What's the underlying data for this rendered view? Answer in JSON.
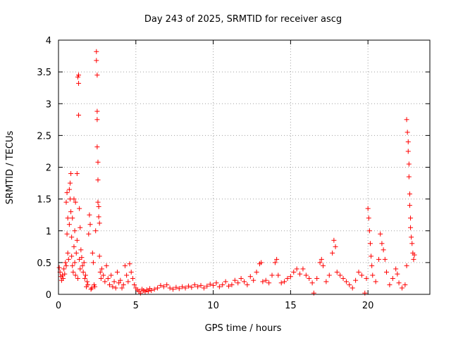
{
  "chart_data": {
    "type": "scatter",
    "title": "Day 243 of 2025, SRMTID for receiver ascg",
    "xlabel": "GPS time / hours",
    "ylabel": "SRMTID / TECUs",
    "xlim": [
      0,
      24
    ],
    "ylim": [
      0,
      4
    ],
    "xticks": [
      0,
      5,
      10,
      15,
      20
    ],
    "yticks": [
      0,
      0.5,
      1,
      1.5,
      2,
      2.5,
      3,
      3.5,
      4
    ],
    "xtick_labels": [
      "0",
      "5",
      "10",
      "15",
      "20"
    ],
    "ytick_labels": [
      "0",
      "0.5",
      "1",
      "1.5",
      "2",
      "2.5",
      "3",
      "3.5",
      "4"
    ],
    "grid": true,
    "marker": "+",
    "color": "#ff0000",
    "series": [
      {
        "name": "SRMTID",
        "points": [
          [
            0.05,
            0.42
          ],
          [
            0.1,
            0.35
          ],
          [
            0.15,
            0.28
          ],
          [
            0.2,
            0.22
          ],
          [
            0.25,
            0.3
          ],
          [
            0.3,
            0.25
          ],
          [
            0.35,
            0.4
          ],
          [
            0.4,
            0.32
          ],
          [
            0.45,
            0.5
          ],
          [
            0.5,
            0.45
          ],
          [
            0.5,
            1.45
          ],
          [
            0.55,
            1.6
          ],
          [
            0.55,
            0.95
          ],
          [
            0.6,
            1.2
          ],
          [
            0.6,
            0.65
          ],
          [
            0.65,
            0.55
          ],
          [
            0.7,
            1.1
          ],
          [
            0.7,
            1.65
          ],
          [
            0.75,
            1.75
          ],
          [
            0.75,
            1.5
          ],
          [
            0.8,
            1.9
          ],
          [
            0.8,
            1.3
          ],
          [
            0.85,
            0.9
          ],
          [
            0.85,
            0.6
          ],
          [
            0.9,
            1.2
          ],
          [
            0.9,
            0.45
          ],
          [
            0.95,
            0.35
          ],
          [
            1.0,
            1.5
          ],
          [
            1.0,
            0.75
          ],
          [
            1.05,
            0.5
          ],
          [
            1.05,
            1.0
          ],
          [
            1.1,
            1.45
          ],
          [
            1.1,
            0.3
          ],
          [
            1.15,
            0.65
          ],
          [
            1.2,
            0.85
          ],
          [
            1.2,
            1.9
          ],
          [
            1.25,
            3.42
          ],
          [
            1.25,
            0.25
          ],
          [
            1.3,
            3.32
          ],
          [
            1.3,
            2.82
          ],
          [
            1.3,
            3.45
          ],
          [
            1.35,
            1.35
          ],
          [
            1.35,
            0.55
          ],
          [
            1.4,
            1.05
          ],
          [
            1.4,
            0.4
          ],
          [
            1.45,
            0.7
          ],
          [
            1.5,
            0.58
          ],
          [
            1.55,
            0.45
          ],
          [
            1.6,
            0.35
          ],
          [
            1.65,
            0.5
          ],
          [
            1.7,
            0.25
          ],
          [
            1.75,
            0.3
          ],
          [
            1.8,
            0.12
          ],
          [
            1.85,
            0.2
          ],
          [
            1.9,
            0.15
          ],
          [
            1.95,
            0.95
          ],
          [
            2.0,
            1.25
          ],
          [
            2.05,
            1.1
          ],
          [
            2.1,
            0.08
          ],
          [
            2.15,
            0.1
          ],
          [
            2.2,
            0.65
          ],
          [
            2.25,
            0.5
          ],
          [
            2.3,
            0.15
          ],
          [
            2.35,
            0.12
          ],
          [
            2.4,
            1.0
          ],
          [
            2.45,
            3.82
          ],
          [
            2.45,
            3.68
          ],
          [
            2.5,
            3.45
          ],
          [
            2.5,
            2.88
          ],
          [
            2.5,
            2.75
          ],
          [
            2.5,
            2.32
          ],
          [
            2.55,
            2.08
          ],
          [
            2.55,
            1.8
          ],
          [
            2.55,
            1.45
          ],
          [
            2.6,
            1.38
          ],
          [
            2.6,
            1.22
          ],
          [
            2.65,
            1.12
          ],
          [
            2.65,
            0.6
          ],
          [
            2.7,
            0.35
          ],
          [
            2.75,
            0.25
          ],
          [
            2.8,
            0.4
          ],
          [
            2.9,
            0.3
          ],
          [
            3.0,
            0.2
          ],
          [
            3.1,
            0.45
          ],
          [
            3.2,
            0.25
          ],
          [
            3.3,
            0.15
          ],
          [
            3.4,
            0.3
          ],
          [
            3.5,
            0.12
          ],
          [
            3.6,
            0.2
          ],
          [
            3.7,
            0.1
          ],
          [
            3.8,
            0.35
          ],
          [
            3.9,
            0.18
          ],
          [
            4.0,
            0.22
          ],
          [
            4.1,
            0.1
          ],
          [
            4.2,
            0.15
          ],
          [
            4.3,
            0.45
          ],
          [
            4.4,
            0.3
          ],
          [
            4.5,
            0.2
          ],
          [
            4.6,
            0.48
          ],
          [
            4.7,
            0.35
          ],
          [
            4.8,
            0.25
          ],
          [
            4.9,
            0.15
          ],
          [
            5.0,
            0.1
          ],
          [
            5.1,
            0.07
          ],
          [
            5.2,
            0.05
          ],
          [
            5.3,
            0.02
          ],
          [
            5.4,
            0.08
          ],
          [
            5.5,
            0.06
          ],
          [
            5.6,
            0.04
          ],
          [
            5.7,
            0.07
          ],
          [
            5.8,
            0.05
          ],
          [
            5.9,
            0.09
          ],
          [
            6.0,
            0.06
          ],
          [
            6.2,
            0.08
          ],
          [
            6.4,
            0.1
          ],
          [
            6.6,
            0.14
          ],
          [
            6.8,
            0.12
          ],
          [
            7.0,
            0.15
          ],
          [
            7.2,
            0.1
          ],
          [
            7.4,
            0.08
          ],
          [
            7.6,
            0.11
          ],
          [
            7.8,
            0.09
          ],
          [
            8.0,
            0.12
          ],
          [
            8.2,
            0.1
          ],
          [
            8.4,
            0.13
          ],
          [
            8.6,
            0.11
          ],
          [
            8.8,
            0.15
          ],
          [
            9.0,
            0.12
          ],
          [
            9.2,
            0.14
          ],
          [
            9.4,
            0.1
          ],
          [
            9.6,
            0.13
          ],
          [
            9.8,
            0.16
          ],
          [
            10.0,
            0.14
          ],
          [
            10.2,
            0.18
          ],
          [
            10.4,
            0.12
          ],
          [
            10.6,
            0.15
          ],
          [
            10.8,
            0.2
          ],
          [
            11.0,
            0.13
          ],
          [
            11.2,
            0.15
          ],
          [
            11.4,
            0.22
          ],
          [
            11.6,
            0.18
          ],
          [
            11.8,
            0.25
          ],
          [
            12.0,
            0.2
          ],
          [
            12.2,
            0.15
          ],
          [
            12.4,
            0.28
          ],
          [
            12.6,
            0.22
          ],
          [
            12.8,
            0.35
          ],
          [
            13.0,
            0.48
          ],
          [
            13.1,
            0.5
          ],
          [
            13.2,
            0.2
          ],
          [
            13.4,
            0.22
          ],
          [
            13.6,
            0.18
          ],
          [
            13.8,
            0.3
          ],
          [
            14.0,
            0.5
          ],
          [
            14.1,
            0.55
          ],
          [
            14.2,
            0.3
          ],
          [
            14.4,
            0.18
          ],
          [
            14.6,
            0.2
          ],
          [
            14.8,
            0.25
          ],
          [
            15.0,
            0.28
          ],
          [
            15.2,
            0.35
          ],
          [
            15.4,
            0.4
          ],
          [
            15.6,
            0.32
          ],
          [
            15.8,
            0.4
          ],
          [
            16.0,
            0.3
          ],
          [
            16.2,
            0.25
          ],
          [
            16.4,
            0.18
          ],
          [
            16.5,
            0.02
          ],
          [
            16.7,
            0.25
          ],
          [
            16.9,
            0.5
          ],
          [
            17.0,
            0.55
          ],
          [
            17.1,
            0.45
          ],
          [
            17.3,
            0.2
          ],
          [
            17.5,
            0.3
          ],
          [
            17.7,
            0.65
          ],
          [
            17.8,
            0.85
          ],
          [
            17.9,
            0.75
          ],
          [
            18.0,
            0.35
          ],
          [
            18.2,
            0.3
          ],
          [
            18.4,
            0.25
          ],
          [
            18.6,
            0.2
          ],
          [
            18.8,
            0.15
          ],
          [
            19.0,
            0.1
          ],
          [
            19.2,
            0.22
          ],
          [
            19.4,
            0.35
          ],
          [
            19.6,
            0.3
          ],
          [
            19.8,
            0.02
          ],
          [
            19.9,
            0.25
          ],
          [
            20.0,
            1.35
          ],
          [
            20.05,
            1.2
          ],
          [
            20.1,
            1.0
          ],
          [
            20.15,
            0.8
          ],
          [
            20.2,
            0.6
          ],
          [
            20.25,
            0.45
          ],
          [
            20.3,
            0.3
          ],
          [
            20.5,
            0.2
          ],
          [
            20.7,
            0.55
          ],
          [
            20.8,
            0.95
          ],
          [
            20.9,
            0.8
          ],
          [
            21.0,
            0.7
          ],
          [
            21.1,
            0.55
          ],
          [
            21.2,
            0.35
          ],
          [
            21.4,
            0.15
          ],
          [
            21.6,
            0.25
          ],
          [
            21.8,
            0.4
          ],
          [
            21.9,
            0.32
          ],
          [
            22.0,
            0.18
          ],
          [
            22.2,
            0.1
          ],
          [
            22.4,
            0.15
          ],
          [
            22.5,
            0.45
          ],
          [
            22.5,
            2.75
          ],
          [
            22.55,
            2.55
          ],
          [
            22.6,
            2.4
          ],
          [
            22.6,
            2.25
          ],
          [
            22.65,
            2.05
          ],
          [
            22.65,
            1.85
          ],
          [
            22.7,
            1.58
          ],
          [
            22.7,
            1.4
          ],
          [
            22.75,
            1.2
          ],
          [
            22.75,
            1.05
          ],
          [
            22.8,
            0.9
          ],
          [
            22.85,
            0.8
          ],
          [
            22.9,
            0.65
          ],
          [
            22.95,
            0.55
          ],
          [
            23.0,
            0.62
          ]
        ]
      }
    ]
  }
}
